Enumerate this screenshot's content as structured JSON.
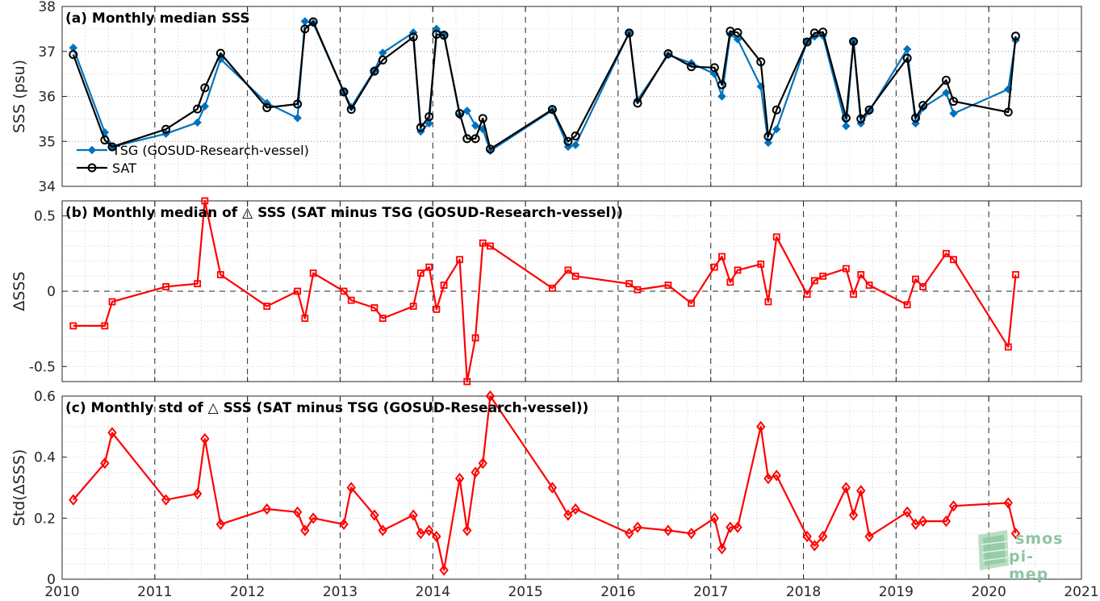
{
  "chart_data": [
    {
      "type": "line",
      "title": "(a) Monthly median SSS",
      "xlabel": "",
      "ylabel": "SSS (psu)",
      "xlim": [
        2010,
        2021
      ],
      "ylim": [
        34,
        38
      ],
      "grid": true,
      "legend": "left",
      "series": [
        {
          "name": "TSG (GOSUD-Research-vessel)",
          "color": "#0072bd",
          "marker": "diamond",
          "x": [
            2010.12,
            2010.46,
            2010.54,
            2011.12,
            2011.46,
            2011.54,
            2011.71,
            2012.21,
            2012.54,
            2012.62,
            2012.71,
            2013.04,
            2013.12,
            2013.37,
            2013.46,
            2013.79,
            2013.87,
            2013.96,
            2014.04,
            2014.12,
            2014.29,
            2014.37,
            2014.46,
            2014.54,
            2014.62,
            2015.29,
            2015.46,
            2015.54,
            2016.12,
            2016.21,
            2016.54,
            2016.79,
            2017.04,
            2017.12,
            2017.21,
            2017.29,
            2017.54,
            2017.62,
            2017.71,
            2018.04,
            2018.12,
            2018.21,
            2018.46,
            2018.54,
            2018.62,
            2018.71,
            2019.12,
            2019.21,
            2019.29,
            2019.54,
            2019.62,
            2020.21,
            2020.29
          ],
          "y": [
            37.08,
            35.2,
            34.88,
            35.17,
            35.42,
            35.78,
            36.83,
            35.85,
            35.52,
            37.67,
            37.63,
            36.1,
            35.76,
            36.58,
            36.97,
            37.42,
            35.22,
            35.4,
            37.5,
            37.38,
            35.58,
            35.68,
            35.35,
            35.27,
            34.79,
            35.69,
            34.88,
            34.92,
            37.42,
            35.92,
            36.92,
            36.74,
            36.5,
            36.0,
            37.38,
            37.27,
            36.22,
            34.97,
            35.27,
            37.22,
            37.33,
            37.35,
            35.34,
            37.22,
            35.4,
            35.67,
            37.05,
            35.4,
            35.75,
            36.08,
            35.62,
            36.16,
            37.25
          ]
        },
        {
          "name": "SAT",
          "color": "#000000",
          "marker": "circle",
          "x": [
            2010.12,
            2010.46,
            2010.54,
            2011.12,
            2011.46,
            2011.54,
            2011.71,
            2012.21,
            2012.54,
            2012.62,
            2012.71,
            2013.04,
            2013.12,
            2013.37,
            2013.46,
            2013.79,
            2013.87,
            2013.96,
            2014.04,
            2014.12,
            2014.29,
            2014.37,
            2014.46,
            2014.54,
            2014.62,
            2015.29,
            2015.46,
            2015.54,
            2016.12,
            2016.21,
            2016.54,
            2016.79,
            2017.04,
            2017.12,
            2017.21,
            2017.29,
            2017.54,
            2017.62,
            2017.71,
            2018.04,
            2018.12,
            2018.21,
            2018.46,
            2018.54,
            2018.62,
            2018.71,
            2019.12,
            2019.21,
            2019.29,
            2019.54,
            2019.62,
            2020.21,
            2020.29
          ],
          "y": [
            36.93,
            35.03,
            34.88,
            35.27,
            35.72,
            36.19,
            36.96,
            35.75,
            35.83,
            37.5,
            37.66,
            36.1,
            35.71,
            36.56,
            36.81,
            37.32,
            35.31,
            35.55,
            37.38,
            37.36,
            35.62,
            35.06,
            35.06,
            35.51,
            34.83,
            35.71,
            35.0,
            35.12,
            37.41,
            35.85,
            36.95,
            36.66,
            36.64,
            36.26,
            37.45,
            37.42,
            36.77,
            35.11,
            35.7,
            37.21,
            37.41,
            37.43,
            35.52,
            37.22,
            35.5,
            35.7,
            36.85,
            35.52,
            35.8,
            36.36,
            35.89,
            35.65,
            37.34
          ]
        }
      ]
    },
    {
      "type": "line",
      "title": "(b) Monthly median of △ SSS (SAT minus TSG (GOSUD-Research-vessel))",
      "xlabel": "",
      "ylabel": "ΔSSS",
      "xlim": [
        2010,
        2021
      ],
      "ylim": [
        -0.6,
        0.6
      ],
      "grid": true,
      "series": [
        {
          "color": "#ff0000",
          "marker": "square",
          "x": [
            2010.12,
            2010.46,
            2010.54,
            2011.12,
            2011.46,
            2011.54,
            2011.71,
            2012.21,
            2012.54,
            2012.62,
            2012.71,
            2013.04,
            2013.12,
            2013.37,
            2013.46,
            2013.79,
            2013.87,
            2013.96,
            2014.04,
            2014.12,
            2014.29,
            2014.37,
            2014.46,
            2014.54,
            2014.62,
            2015.29,
            2015.46,
            2015.54,
            2016.12,
            2016.21,
            2016.54,
            2016.79,
            2017.04,
            2017.12,
            2017.21,
            2017.29,
            2017.54,
            2017.62,
            2017.71,
            2018.04,
            2018.12,
            2018.21,
            2018.46,
            2018.54,
            2018.62,
            2018.71,
            2019.12,
            2019.21,
            2019.29,
            2019.54,
            2019.62,
            2020.21,
            2020.29
          ],
          "y": [
            -0.23,
            -0.23,
            -0.07,
            0.03,
            0.05,
            0.6,
            0.11,
            -0.1,
            0.0,
            -0.18,
            0.12,
            0.0,
            -0.06,
            -0.11,
            -0.18,
            -0.1,
            0.12,
            0.16,
            -0.12,
            0.04,
            0.21,
            -0.6,
            -0.31,
            0.32,
            0.3,
            0.02,
            0.14,
            0.1,
            0.05,
            0.01,
            0.04,
            -0.08,
            0.16,
            0.23,
            0.06,
            0.14,
            0.18,
            -0.07,
            0.36,
            -0.02,
            0.07,
            0.1,
            0.15,
            -0.02,
            0.11,
            0.04,
            -0.09,
            0.08,
            0.03,
            0.25,
            0.21,
            -0.37,
            0.11
          ]
        }
      ]
    },
    {
      "type": "line",
      "title": "(c) Monthly std of △ SSS (SAT minus TSG (GOSUD-Research-vessel))",
      "xlabel": "",
      "ylabel": "Std(ΔSSS)",
      "xlim": [
        2010,
        2021
      ],
      "ylim": [
        0,
        0.6
      ],
      "grid": true,
      "series": [
        {
          "color": "#ff0000",
          "marker": "diamond",
          "x": [
            2010.12,
            2010.46,
            2010.54,
            2011.12,
            2011.46,
            2011.54,
            2011.71,
            2012.21,
            2012.54,
            2012.62,
            2012.71,
            2013.04,
            2013.12,
            2013.37,
            2013.46,
            2013.79,
            2013.87,
            2013.96,
            2014.04,
            2014.12,
            2014.29,
            2014.37,
            2014.46,
            2014.54,
            2014.62,
            2015.29,
            2015.46,
            2015.54,
            2016.12,
            2016.21,
            2016.54,
            2016.79,
            2017.04,
            2017.12,
            2017.21,
            2017.29,
            2017.54,
            2017.62,
            2017.71,
            2018.04,
            2018.12,
            2018.21,
            2018.46,
            2018.54,
            2018.62,
            2018.71,
            2019.12,
            2019.21,
            2019.29,
            2019.54,
            2019.62,
            2020.21,
            2020.29
          ],
          "y": [
            0.26,
            0.38,
            0.48,
            0.26,
            0.28,
            0.46,
            0.18,
            0.23,
            0.22,
            0.16,
            0.2,
            0.18,
            0.3,
            0.21,
            0.16,
            0.21,
            0.15,
            0.16,
            0.14,
            0.03,
            0.33,
            0.16,
            0.35,
            0.38,
            0.6,
            0.3,
            0.21,
            0.23,
            0.15,
            0.17,
            0.16,
            0.15,
            0.2,
            0.1,
            0.17,
            0.17,
            0.5,
            0.33,
            0.34,
            0.14,
            0.11,
            0.14,
            0.3,
            0.21,
            0.29,
            0.14,
            0.22,
            0.18,
            0.19,
            0.19,
            0.24,
            0.25,
            0.15
          ]
        }
      ]
    }
  ],
  "logo": {
    "line1": "smos",
    "line2": "pi-mep",
    "color": "#8fc4a3"
  }
}
